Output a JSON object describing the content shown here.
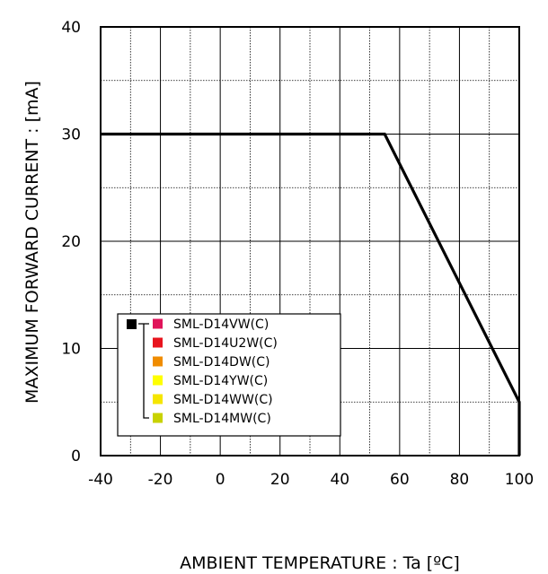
{
  "chart_data": {
    "type": "line",
    "xlabel": "AMBIENT TEMPERATURE : Ta [ºC]",
    "ylabel": "MAXIMUM FORWARD CURRENT :  [mA]",
    "xlim": [
      -40,
      100
    ],
    "ylim": [
      0,
      40
    ],
    "x_ticks": [
      "-40",
      "-20",
      "0",
      "20",
      "40",
      "60",
      "80",
      "100"
    ],
    "y_ticks": [
      "0",
      "10",
      "20",
      "30",
      "40"
    ],
    "x_minor_step": 10,
    "y_minor_step": 5,
    "grid": true,
    "series": [
      {
        "x": [
          -40,
          55,
          100,
          100
        ],
        "y": [
          30,
          30,
          5,
          0
        ],
        "color": "#000000"
      }
    ],
    "legend": {
      "placement": "lower-left",
      "group_marker_color": "#000000",
      "items": [
        {
          "label": "SML-D14VW(C)",
          "color": "#e0145a"
        },
        {
          "label": "SML-D14U2W(C)",
          "color": "#e8141e"
        },
        {
          "label": "SML-D14DW(C)",
          "color": "#f08c00"
        },
        {
          "label": "SML-D14YW(C)",
          "color": "#ffff00"
        },
        {
          "label": "SML-D14WW(C)",
          "color": "#f5e600"
        },
        {
          "label": "SML-D14MW(C)",
          "color": "#c8d200"
        }
      ]
    }
  }
}
